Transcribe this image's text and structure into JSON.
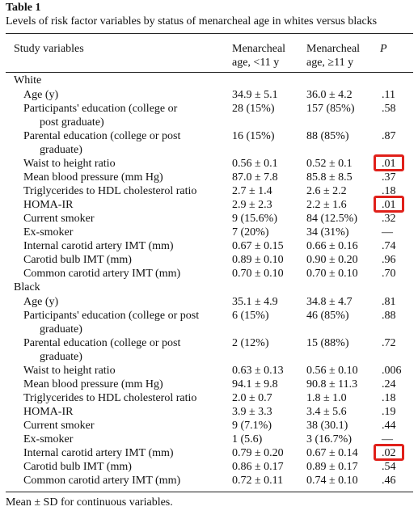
{
  "table_title": "Table 1",
  "caption": "Levels of risk factor variables by status of menarcheal age in whites versus blacks",
  "headers": {
    "variable": "Study variables",
    "col_a_line1": "Menarcheal",
    "col_a_line2": "age, <11 y",
    "col_b_line1": "Menarcheal",
    "col_b_line2": "age, ≥11 y",
    "p": "P"
  },
  "groups": {
    "white": "White",
    "black": "Black"
  },
  "white_rows": [
    {
      "var": "Age (y)",
      "a": "34.9 ± 5.1",
      "b": "36.0 ± 4.2",
      "p": ".11"
    },
    {
      "var": "Participants' education (college or",
      "var2": "post graduate)",
      "a": "28 (15%)",
      "b": "157 (85%)",
      "p": ".58"
    },
    {
      "var": "Parental education (college or post",
      "var2": "graduate)",
      "a": "16 (15%)",
      "b": "88 (85%)",
      "p": ".87"
    },
    {
      "var": "Waist to height ratio",
      "a": "0.56 ± 0.1",
      "b": "0.52 ± 0.1",
      "p": ".01"
    },
    {
      "var": "Mean blood pressure (mm Hg)",
      "a": "87.0 ± 7.8",
      "b": "85.8 ± 8.5",
      "p": ".37"
    },
    {
      "var": "Triglycerides to HDL cholesterol ratio",
      "a": "2.7 ± 1.4",
      "b": "2.6 ± 2.2",
      "p": ".18"
    },
    {
      "var": "HOMA-IR",
      "a": "2.9 ± 2.3",
      "b": "2.2 ± 1.6",
      "p": ".01"
    },
    {
      "var": "Current smoker",
      "a": "9 (15.6%)",
      "b": "84 (12.5%)",
      "p": ".32"
    },
    {
      "var": "Ex-smoker",
      "a": "7 (20%)",
      "b": "34 (31%)",
      "p": "—"
    },
    {
      "var": "Internal carotid artery IMT (mm)",
      "a": "0.67 ± 0.15",
      "b": "0.66 ± 0.16",
      "p": ".74"
    },
    {
      "var": "Carotid bulb IMT (mm)",
      "a": "0.89 ± 0.10",
      "b": "0.90 ± 0.20",
      "p": ".96"
    },
    {
      "var": "Common carotid artery IMT (mm)",
      "a": "0.70 ± 0.10",
      "b": "0.70 ± 0.10",
      "p": ".70"
    }
  ],
  "black_rows": [
    {
      "var": "Age (y)",
      "a": "35.1 ± 4.9",
      "b": "34.8 ± 4.7",
      "p": ".81"
    },
    {
      "var": "Participants' education (college or post",
      "var2": "graduate)",
      "a": "6 (15%)",
      "b": "46 (85%)",
      "p": ".88"
    },
    {
      "var": "Parental education (college or post",
      "var2": "graduate)",
      "a": "2 (12%)",
      "b": "15 (88%)",
      "p": ".72"
    },
    {
      "var": "Waist to height ratio",
      "a": "0.63 ± 0.13",
      "b": "0.56 ± 0.10",
      "p": ".006"
    },
    {
      "var": "Mean blood pressure (mm Hg)",
      "a": "94.1 ± 9.8",
      "b": "90.8 ± 11.3",
      "p": ".24"
    },
    {
      "var": "Triglycerides to HDL cholesterol ratio",
      "a": "2.0 ± 0.7",
      "b": "1.8 ± 1.0",
      "p": ".18"
    },
    {
      "var": "HOMA-IR",
      "a": "3.9 ± 3.3",
      "b": "3.4 ± 5.6",
      "p": ".19"
    },
    {
      "var": "Current smoker",
      "a": "9 (7.1%)",
      "b": "38 (30.1)",
      "p": ".44"
    },
    {
      "var": "Ex-smoker",
      "a": "1 (5.6)",
      "b": "3 (16.7%)",
      "p": "—"
    },
    {
      "var": "Internal carotid artery IMT (mm)",
      "a": "0.79 ± 0.20",
      "b": "0.67 ± 0.14",
      "p": ".02"
    },
    {
      "var": "Carotid bulb IMT (mm)",
      "a": "0.86 ± 0.17",
      "b": "0.89 ± 0.17",
      "p": ".54"
    },
    {
      "var": "Common carotid artery IMT (mm)",
      "a": "0.72 ± 0.11",
      "b": "0.74 ± 0.10",
      "p": ".46"
    }
  ],
  "footnote": "Mean ± SD for continuous variables.",
  "highlight_color": "#e0201a"
}
